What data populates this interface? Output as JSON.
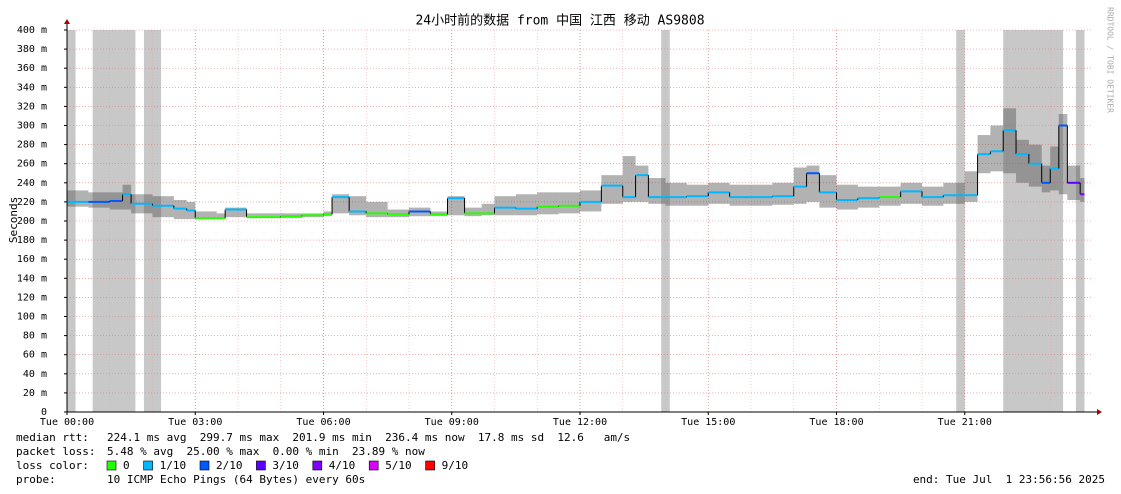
{
  "chart_data": {
    "type": "smokeping",
    "title": "24小时前的数据 from 中国 江西 移动 AS9808",
    "y_label": "Seconds",
    "watermark": "RRDTOOL / TOBI OETIKER",
    "xlim": [
      0,
      24
    ],
    "xticks": [
      {
        "value": 0,
        "label": "Tue 00:00"
      },
      {
        "value": 3,
        "label": "Tue 03:00"
      },
      {
        "value": 6,
        "label": "Tue 06:00"
      },
      {
        "value": 9,
        "label": "Tue 09:00"
      },
      {
        "value": 12,
        "label": "Tue 12:00"
      },
      {
        "value": 15,
        "label": "Tue 15:00"
      },
      {
        "value": 18,
        "label": "Tue 18:00"
      },
      {
        "value": 21,
        "label": "Tue 21:00"
      }
    ],
    "xminor": [
      1,
      2,
      4,
      5,
      7,
      8,
      10,
      11,
      13,
      14,
      16,
      17,
      19,
      20,
      22,
      23
    ],
    "ylim": [
      0,
      400
    ],
    "yticks": [
      0,
      {
        "value": 20,
        "label": "20 m"
      },
      {
        "value": 40,
        "label": "40 m"
      },
      {
        "value": 60,
        "label": "60 m"
      },
      {
        "value": 80,
        "label": "80 m"
      },
      {
        "value": 100,
        "label": "100 m"
      },
      {
        "value": 120,
        "label": "120 m"
      },
      {
        "value": 140,
        "label": "140 m"
      },
      {
        "value": 160,
        "label": "160 m"
      },
      {
        "value": 180,
        "label": "180 m"
      },
      {
        "value": 200,
        "label": "200 m"
      },
      {
        "value": 220,
        "label": "220 m"
      },
      {
        "value": 240,
        "label": "240 m"
      },
      {
        "value": 260,
        "label": "260 m"
      },
      {
        "value": 280,
        "label": "280 m"
      },
      {
        "value": 300,
        "label": "300 m"
      },
      {
        "value": 320,
        "label": "320 m"
      },
      {
        "value": 340,
        "label": "340 m"
      },
      {
        "value": 360,
        "label": "360 m"
      },
      {
        "value": 380,
        "label": "380 m"
      },
      {
        "value": 400,
        "label": "400 m"
      }
    ],
    "grid": true,
    "loss_bands": [
      [
        0,
        0.2
      ],
      [
        0.6,
        1.6
      ],
      [
        1.8,
        2.2
      ],
      [
        13.9,
        14.1
      ],
      [
        20.8,
        21.0
      ],
      [
        21.9,
        23.3
      ],
      [
        23.6,
        23.8
      ]
    ],
    "x": [
      0,
      0.5,
      1,
      1.3,
      1.5,
      2,
      2.5,
      2.8,
      3,
      3.5,
      3.7,
      4.2,
      5,
      5.5,
      6,
      6.2,
      6.6,
      7,
      7.5,
      8,
      8.5,
      8.9,
      9.3,
      9.7,
      10,
      10.5,
      11,
      11.5,
      12,
      12.5,
      13,
      13.3,
      13.6,
      14,
      14.5,
      15,
      15.5,
      16,
      16.5,
      17,
      17.3,
      17.6,
      18,
      18.5,
      19,
      19.5,
      20,
      20.5,
      21,
      21.3,
      21.6,
      21.9,
      22.2,
      22.5,
      22.8,
      23,
      23.2,
      23.4,
      23.7
    ],
    "median": [
      220,
      220,
      221,
      228,
      218,
      216,
      213,
      211,
      203,
      203,
      212,
      204,
      205,
      206,
      207,
      225,
      210,
      208,
      207,
      210,
      207,
      224,
      208,
      208,
      214,
      213,
      215,
      216,
      220,
      237,
      225,
      248,
      225,
      225,
      226,
      230,
      225,
      225,
      226,
      236,
      250,
      230,
      222,
      224,
      225,
      231,
      225,
      227,
      227,
      270,
      273,
      295,
      270,
      260,
      240,
      255,
      300,
      240,
      228
    ],
    "smoke_high": [
      232,
      230,
      230,
      238,
      228,
      226,
      222,
      220,
      210,
      208,
      214,
      208,
      208,
      208,
      210,
      228,
      226,
      220,
      212,
      214,
      210,
      226,
      214,
      218,
      226,
      228,
      230,
      230,
      232,
      248,
      268,
      258,
      245,
      240,
      238,
      240,
      238,
      238,
      240,
      256,
      258,
      248,
      238,
      236,
      236,
      240,
      236,
      240,
      252,
      290,
      300,
      318,
      285,
      280,
      258,
      278,
      312,
      258,
      245
    ],
    "smoke_low": [
      215,
      214,
      212,
      212,
      208,
      204,
      202,
      202,
      202,
      202,
      204,
      203,
      203,
      204,
      205,
      208,
      206,
      204,
      204,
      205,
      205,
      206,
      205,
      206,
      206,
      206,
      207,
      208,
      210,
      218,
      220,
      220,
      218,
      216,
      216,
      218,
      216,
      216,
      217,
      218,
      220,
      214,
      212,
      214,
      216,
      218,
      216,
      218,
      220,
      250,
      252,
      250,
      240,
      236,
      230,
      232,
      228,
      222,
      220
    ],
    "loss": [
      1,
      2,
      2,
      1,
      1,
      1,
      1,
      1,
      0,
      0,
      1,
      0,
      0,
      0,
      0,
      1,
      1,
      0,
      0,
      2,
      0,
      1,
      0,
      0,
      1,
      1,
      0,
      0,
      1,
      1,
      1,
      1,
      1,
      1,
      1,
      1,
      1,
      1,
      1,
      1,
      2,
      1,
      1,
      1,
      0,
      1,
      1,
      1,
      1,
      1,
      1,
      1,
      1,
      1,
      2,
      1,
      2,
      3,
      4
    ],
    "legend_title": "loss color:",
    "legend": [
      {
        "name": "0",
        "color": "#26ff00"
      },
      {
        "name": "1/10",
        "color": "#00b8ff"
      },
      {
        "name": "2/10",
        "color": "#0059ff"
      },
      {
        "name": "3/10",
        "color": "#5e00ff"
      },
      {
        "name": "4/10",
        "color": "#7e00ff"
      },
      {
        "name": "5/10",
        "color": "#dd00ff"
      },
      {
        "name": "9/10",
        "color": "#ff0000"
      }
    ],
    "stats": [
      {
        "label": "median rtt:",
        "text": "224.1 ms avg  299.7 ms max  201.9 ms min  236.4 ms now  17.8 ms sd  12.6   am/s"
      },
      {
        "label": "packet loss:",
        "text": "5.48 % avg  25.00 % max  0.00 % min  23.89 % now"
      }
    ],
    "probe_label": "probe:",
    "probe": "10 ICMP Echo Pings (64 Bytes) every 60s",
    "end": "end: Tue Jul  1 23:56:56 2025"
  }
}
